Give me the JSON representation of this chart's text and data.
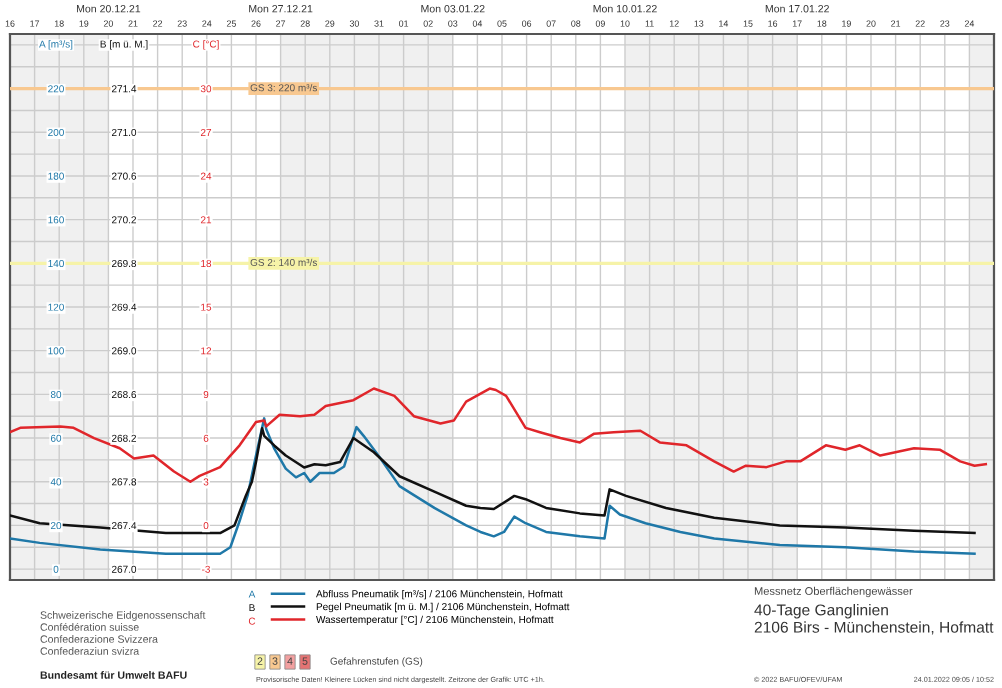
{
  "chart_data": {
    "type": "line",
    "title": "40-Tage Ganglinien\n2106 Birs - Münchenstein, Hofmatt",
    "subtitle": "Messnetz Oberflächengewässer",
    "ylabel": "A [m³/s]",
    "y2label": "B [m ü. M.]",
    "y3label": "C [°C]",
    "xlim": [
      "2021-12-16",
      "2022-01-25"
    ],
    "xticks": [
      {
        "value": "2021-12-16",
        "label": "16"
      },
      {
        "value": "2021-12-17",
        "label": "17"
      },
      {
        "value": "2021-12-18",
        "label": "18"
      },
      {
        "value": "2021-12-19",
        "label": "19"
      },
      {
        "value": "2021-12-20",
        "label": "20"
      },
      {
        "value": "2021-12-21",
        "label": "21"
      },
      {
        "value": "2021-12-22",
        "label": "22"
      },
      {
        "value": "2021-12-23",
        "label": "23"
      },
      {
        "value": "2021-12-24",
        "label": "24"
      },
      {
        "value": "2021-12-25",
        "label": "25"
      },
      {
        "value": "2021-12-26",
        "label": "26"
      },
      {
        "value": "2021-12-27",
        "label": "27"
      },
      {
        "value": "2021-12-28",
        "label": "28"
      },
      {
        "value": "2021-12-29",
        "label": "29"
      },
      {
        "value": "2021-12-30",
        "label": "30"
      },
      {
        "value": "2021-12-31",
        "label": "31"
      },
      {
        "value": "2022-01-01",
        "label": "01"
      },
      {
        "value": "2022-01-02",
        "label": "02"
      },
      {
        "value": "2022-01-03",
        "label": "03"
      },
      {
        "value": "2022-01-04",
        "label": "04"
      },
      {
        "value": "2022-01-05",
        "label": "05"
      },
      {
        "value": "2022-01-06",
        "label": "06"
      },
      {
        "value": "2022-01-07",
        "label": "07"
      },
      {
        "value": "2022-01-08",
        "label": "08"
      },
      {
        "value": "2022-01-09",
        "label": "09"
      },
      {
        "value": "2022-01-10",
        "label": "10"
      },
      {
        "value": "2022-01-11",
        "label": "11"
      },
      {
        "value": "2022-01-12",
        "label": "12"
      },
      {
        "value": "2022-01-13",
        "label": "13"
      },
      {
        "value": "2022-01-14",
        "label": "14"
      },
      {
        "value": "2022-01-15",
        "label": "15"
      },
      {
        "value": "2022-01-16",
        "label": "16"
      },
      {
        "value": "2022-01-17",
        "label": "17"
      },
      {
        "value": "2022-01-18",
        "label": "18"
      },
      {
        "value": "2022-01-19",
        "label": "19"
      },
      {
        "value": "2022-01-20",
        "label": "20"
      },
      {
        "value": "2022-01-21",
        "label": "21"
      },
      {
        "value": "2022-01-22",
        "label": "22"
      },
      {
        "value": "2022-01-23",
        "label": "23"
      },
      {
        "value": "2022-01-24",
        "label": "24"
      }
    ],
    "x2lim": [
      "2021-12-16",
      "2022-01-25"
    ],
    "x2ticks": [
      {
        "value": "2021-12-20",
        "label": "Mon 20.12.21"
      },
      {
        "value": "2021-12-27",
        "label": "Mon 27.12.21"
      },
      {
        "value": "2022-01-03",
        "label": "Mon 03.01.22"
      },
      {
        "value": "2022-01-10",
        "label": "Mon 10.01.22"
      },
      {
        "value": "2022-01-17",
        "label": "Mon 17.01.22"
      }
    ],
    "ylim": [
      -5,
      245
    ],
    "yticks": [
      0,
      {
        "value": 10,
        "label": null
      },
      20,
      {
        "value": 30,
        "label": null
      },
      40,
      {
        "value": 50,
        "label": null
      },
      60,
      {
        "value": 70,
        "label": null
      },
      80,
      {
        "value": 90,
        "label": null
      },
      100,
      {
        "value": 110,
        "label": null
      },
      120,
      {
        "value": 130,
        "label": null
      },
      140,
      {
        "value": 150,
        "label": null
      },
      160,
      {
        "value": 170,
        "label": null
      },
      180,
      {
        "value": 190,
        "label": null
      },
      200,
      {
        "value": 210,
        "label": null
      },
      220,
      {
        "value": 230,
        "label": null
      },
      {
        "value": 240,
        "label": null
      }
    ],
    "y2lim": [
      266.9,
      271.9
    ],
    "y2ticks": [
      {
        "value": 267,
        "label": "267.0"
      },
      267.4,
      267.8,
      268.2,
      268.6,
      {
        "value": 269,
        "label": "269.0"
      },
      269.4,
      269.8,
      270.2,
      270.6,
      {
        "value": 271,
        "label": "271.0"
      },
      271.4
    ],
    "y3lim": [
      -3.75,
      33.75
    ],
    "y3ticks": [
      -3,
      0,
      3,
      6,
      9,
      12,
      15,
      18,
      21,
      24,
      27,
      30
    ],
    "grid": true,
    "legend": "bottom",
    "ref_lines": [
      {
        "axis": "y",
        "value": 220,
        "label": "GS 3: 220 m³/s",
        "color": "#f8c890"
      },
      {
        "axis": "y",
        "value": 140,
        "label": "GS 2: 140 m³/s",
        "color": "#f6f3a8"
      }
    ],
    "bands": [
      {
        "axis": "x",
        "from": "2021-12-16",
        "to": "2021-12-20",
        "label": null,
        "color": "#f0f0f0"
      },
      {
        "axis": "x",
        "from": "2021-12-27",
        "to": "2022-01-03",
        "label": null,
        "color": "#f0f0f0"
      },
      {
        "axis": "x",
        "from": "2022-01-10",
        "to": "2022-01-17",
        "label": null,
        "color": "#f0f0f0"
      },
      {
        "axis": "x",
        "from": "2022-01-24",
        "to": "2022-01-25",
        "label": null,
        "color": "#f0f0f0"
      }
    ],
    "series": [
      {
        "name": "Abfluss Pneumatik [m³/s] / 2106 Münchenstein, Hofmatt",
        "color": "#1f78a8",
        "axis": "y",
        "x": [
          "2021-12-16T00:00",
          "2021-12-17T05:00",
          "2021-12-19T16:00",
          "2021-12-22T08:00",
          "2021-12-24T13:00",
          "2021-12-24T23:00",
          "2021-12-25T08:00",
          "2021-12-25T16:00",
          "2021-12-26T00:00",
          "2021-12-26T08:00",
          "2021-12-26T10:00",
          "2021-12-26T18:00",
          "2021-12-27T05:00",
          "2021-12-27T15:00",
          "2021-12-27T23:00",
          "2021-12-28T05:00",
          "2021-12-28T14:00",
          "2021-12-29T04:00",
          "2021-12-29T14:00",
          "2021-12-30T02:00",
          "2021-12-30T09:00",
          "2021-12-31T01:00",
          "2021-12-31T20:00",
          "2022-01-02T06:00",
          "2022-01-03T13:00",
          "2022-01-04T03:00",
          "2022-01-04T16:00",
          "2022-01-05T02:00",
          "2022-01-05T12:00",
          "2022-01-05T23:00",
          "2022-01-06T19:00",
          "2022-01-08T04:00",
          "2022-01-09T04:00",
          "2022-01-09T09:00",
          "2022-01-09T19:00",
          "2022-01-10T20:00",
          "2022-01-12T06:00",
          "2022-01-13T15:00",
          "2022-01-16T07:00",
          "2022-01-18T23:00",
          "2022-01-21T18:00",
          "2022-01-24T05:00"
        ],
        "values": [
          14,
          12,
          9,
          7,
          7,
          10,
          22,
          34,
          52,
          69,
          64,
          55,
          46,
          42,
          44,
          40,
          44,
          44,
          47,
          65,
          61,
          51,
          38,
          28,
          20,
          17,
          15,
          17,
          24,
          21,
          17,
          15,
          14,
          29,
          25,
          21,
          17,
          14,
          11,
          10,
          8,
          7
        ]
      },
      {
        "name": "Pegel Pneumatik [m ü. M.] / 2106 Münchenstein, Hofmatt",
        "color": "#111111",
        "axis": "y2",
        "x": [
          "2021-12-16T00:00",
          "2021-12-17T05:00",
          "2021-12-19T16:00",
          "2021-12-22T08:00",
          "2021-12-24T13:00",
          "2021-12-25T03:00",
          "2021-12-25T14:00",
          "2021-12-25T20:00",
          "2021-12-26T00:00",
          "2021-12-26T06:00",
          "2021-12-26T08:00",
          "2021-12-26T18:00",
          "2021-12-27T05:00",
          "2021-12-27T23:00",
          "2021-12-28T09:00",
          "2021-12-28T20:00",
          "2021-12-29T10:00",
          "2021-12-29T23:00",
          "2021-12-30T19:00",
          "2021-12-31T20:00",
          "2022-01-02T06:00",
          "2022-01-03T13:00",
          "2022-01-04T03:00",
          "2022-01-04T16:00",
          "2022-01-05T12:00",
          "2022-01-05T23:00",
          "2022-01-06T19:00",
          "2022-01-08T04:00",
          "2022-01-09T04:00",
          "2022-01-09T09:00",
          "2022-01-10T01:00",
          "2022-01-11T16:00",
          "2022-01-13T15:00",
          "2022-01-16T07:00",
          "2022-01-18T23:00",
          "2022-01-21T18:00",
          "2022-01-24T05:00"
        ],
        "values": [
          267.49,
          267.42,
          267.38,
          267.33,
          267.33,
          267.4,
          267.67,
          267.8,
          267.98,
          268.29,
          268.22,
          268.13,
          268.04,
          267.93,
          267.96,
          267.95,
          267.98,
          268.2,
          268.07,
          267.85,
          267.71,
          267.58,
          267.56,
          267.55,
          267.67,
          267.64,
          267.56,
          267.51,
          267.49,
          267.73,
          267.67,
          267.56,
          267.47,
          267.4,
          267.38,
          267.35,
          267.33
        ]
      },
      {
        "name": "Wassertemperatur [°C] / 2106 Münchenstein, Hofmatt",
        "color": "#e0262b",
        "axis": "y3",
        "x": [
          "2021-12-16T00:00",
          "2021-12-16T10:00",
          "2021-12-18T01:00",
          "2021-12-18T14:00",
          "2021-12-19T10:00",
          "2021-12-20T11:00",
          "2021-12-21T01:00",
          "2021-12-21T20:00",
          "2021-12-22T16:00",
          "2021-12-23T08:00",
          "2021-12-23T17:00",
          "2021-12-24T13:00",
          "2021-12-25T08:00",
          "2021-12-26T00:00",
          "2021-12-26T08:00",
          "2021-12-26T10:00",
          "2021-12-26T23:00",
          "2021-12-27T19:00",
          "2021-12-28T09:00",
          "2021-12-28T20:00",
          "2021-12-29T23:00",
          "2021-12-30T19:00",
          "2021-12-31T15:00",
          "2022-01-01T10:00",
          "2022-01-02T12:00",
          "2022-01-03T01:00",
          "2022-01-03T13:00",
          "2022-01-04T12:00",
          "2022-01-04T18:00",
          "2022-01-05T04:00",
          "2022-01-05T23:00",
          "2022-01-06T13:00",
          "2022-01-07T09:00",
          "2022-01-08T04:00",
          "2022-01-08T18:00",
          "2022-01-09T13:00",
          "2022-01-10T15:00",
          "2022-01-11T10:00",
          "2022-01-12T12:00",
          "2022-01-13T15:00",
          "2022-01-14T10:00",
          "2022-01-14T22:00",
          "2022-01-15T18:00",
          "2022-01-16T13:00",
          "2022-01-17T03:00",
          "2022-01-18T04:00",
          "2022-01-18T23:00",
          "2022-01-19T13:00",
          "2022-01-20T09:00",
          "2022-01-21T18:00",
          "2022-01-22T19:00",
          "2022-01-23T15:00",
          "2022-01-24T05:00",
          "2022-01-24T16:00"
        ],
        "values": [
          6.4,
          6.7,
          6.8,
          6.7,
          6.0,
          5.3,
          4.6,
          4.8,
          3.7,
          3.0,
          3.4,
          4.0,
          5.5,
          7.1,
          7.2,
          6.8,
          7.6,
          7.5,
          7.6,
          8.2,
          8.6,
          9.4,
          8.9,
          7.5,
          7.0,
          7.2,
          8.5,
          9.4,
          9.3,
          8.9,
          6.7,
          6.4,
          6.0,
          5.7,
          6.3,
          6.4,
          6.5,
          5.7,
          5.5,
          4.4,
          3.7,
          4.1,
          4.0,
          4.4,
          4.4,
          5.5,
          5.2,
          5.5,
          4.8,
          5.3,
          5.2,
          4.4,
          4.1,
          4.2
        ]
      }
    ],
    "annotations": [
      "Schweizerische Eidgenossenschaft",
      "Confédération suisse",
      "Confederazione Svizzera",
      "Confederaziun svizra",
      "Bundesamt für Umwelt BAFU",
      "2",
      "3",
      "4",
      "5",
      "Gefahrenstufen (GS)",
      "Provisorische Daten! Kleinere Lücken sind nicht dargestellt. Zeitzone der Grafik: UTC +1h.",
      "© 2022 BAFU/OFEV/UFAM",
      "24.01.2022 09:05 / 10:52",
      "A",
      "B",
      "C"
    ]
  }
}
